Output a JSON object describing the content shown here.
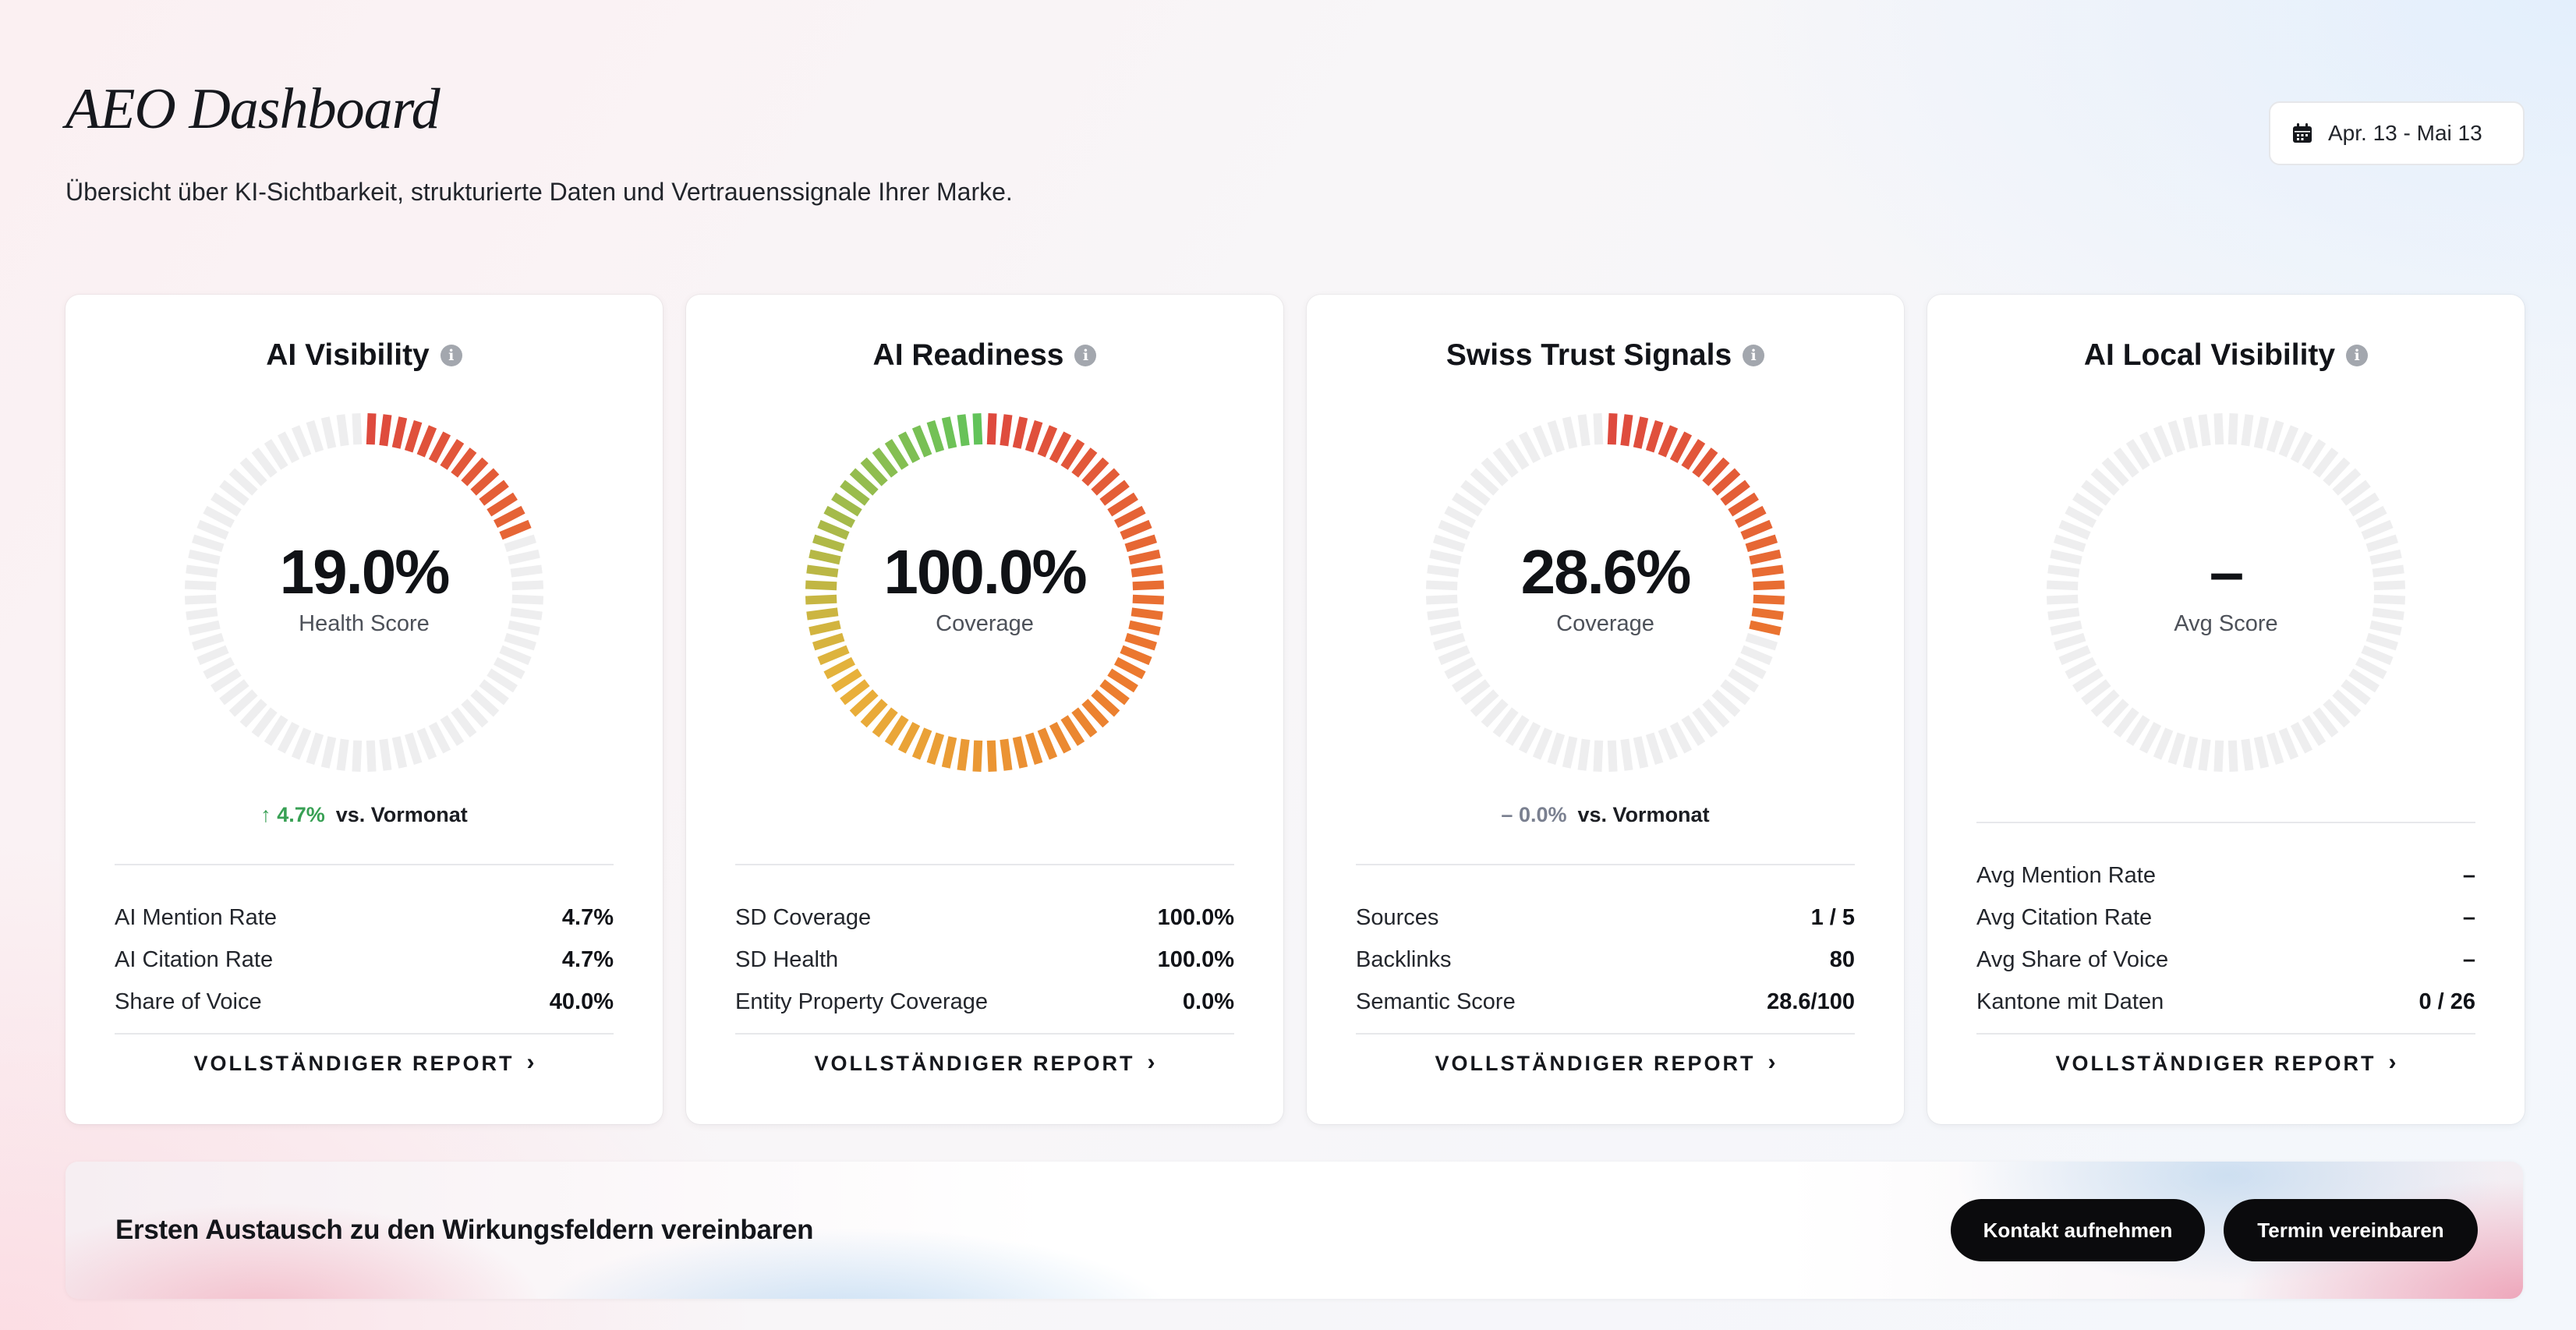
{
  "header": {
    "title": "AEO Dashboard",
    "subtitle": "Übersicht über KI-Sichtbarkeit, strukturierte Daten und Vertrauenssignale Ihrer Marke.",
    "date_range": "Apr. 13 - Mai 13"
  },
  "cards": [
    {
      "title": "AI Visibility",
      "gauge": {
        "value_text": "19.0%",
        "label": "Health Score",
        "fraction": 0.19
      },
      "trend": {
        "arrow": "↑",
        "delta": "4.7%",
        "direction": "up",
        "reference": "vs. Vormonat"
      },
      "metrics": [
        {
          "label": "AI Mention Rate",
          "value": "4.7%"
        },
        {
          "label": "AI Citation Rate",
          "value": "4.7%"
        },
        {
          "label": "Share of Voice",
          "value": "40.0%"
        }
      ],
      "link": "VOLLSTÄNDIGER REPORT"
    },
    {
      "title": "AI Readiness",
      "gauge": {
        "value_text": "100.0%",
        "label": "Coverage",
        "fraction": 1.0
      },
      "metrics": [
        {
          "label": "SD Coverage",
          "value": "100.0%"
        },
        {
          "label": "SD Health",
          "value": "100.0%"
        },
        {
          "label": "Entity Property Coverage",
          "value": "0.0%"
        }
      ],
      "link": "VOLLSTÄNDIGER REPORT"
    },
    {
      "title": "Swiss Trust Signals",
      "gauge": {
        "value_text": "28.6%",
        "label": "Coverage",
        "fraction": 0.286
      },
      "trend": {
        "arrow": "–",
        "delta": "0.0%",
        "direction": "flat",
        "reference": "vs. Vormonat"
      },
      "metrics": [
        {
          "label": "Sources",
          "value": "1 / 5"
        },
        {
          "label": "Backlinks",
          "value": "80"
        },
        {
          "label": "Semantic Score",
          "value": "28.6/100"
        }
      ],
      "link": "VOLLSTÄNDIGER REPORT"
    },
    {
      "title": "AI Local Visibility",
      "gauge": {
        "value_text": "–",
        "label": "Avg Score",
        "fraction": 0
      },
      "metrics": [
        {
          "label": "Avg Mention Rate",
          "value": "–"
        },
        {
          "label": "Avg Citation Rate",
          "value": "–"
        },
        {
          "label": "Avg Share of Voice",
          "value": "–"
        },
        {
          "label": "Kantone mit Daten",
          "value": "0 / 26"
        }
      ],
      "link": "VOLLSTÄNDIGER REPORT"
    }
  ],
  "cta": {
    "text": "Ersten Austausch zu den Wirkungsfeldern vereinbaren",
    "contact_button": "Kontakt aufnehmen",
    "schedule_button": "Termin vereinbaren"
  },
  "colors": {
    "gauge_empty": "#eeeeef",
    "gauge_red": "#de4a3e",
    "gauge_orange": "#ec7a2e",
    "gauge_yellow": "#e9b13a",
    "gauge_green": "#62c35a",
    "trend_up": "#38a054",
    "button_dark": "#0b0b0d"
  },
  "icons": {
    "date": "calendar-icon",
    "info": "info-icon",
    "link": "chevron-right-icon",
    "trend_up": "arrow-up-icon"
  }
}
